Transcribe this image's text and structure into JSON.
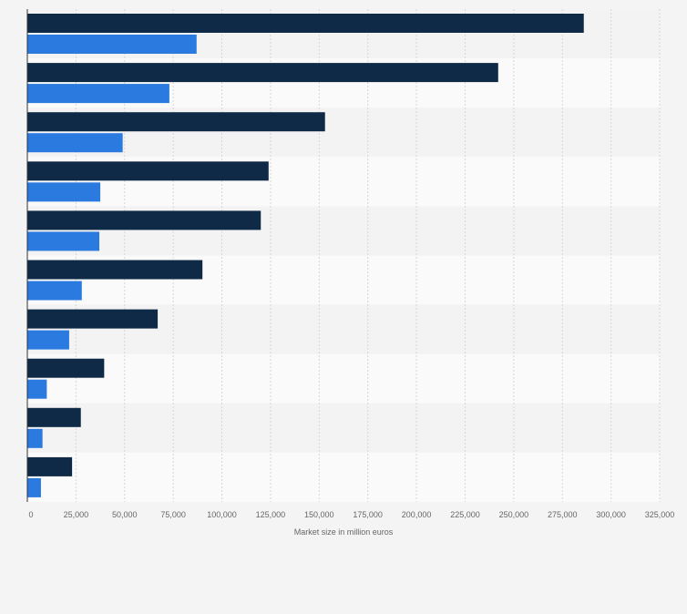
{
  "chart_data": {
    "type": "bar",
    "orientation": "horizontal",
    "title": "",
    "xlabel": "Market size in million euros",
    "ylabel": "",
    "xlim": [
      0,
      325000
    ],
    "x_ticks": [
      0,
      25000,
      50000,
      75000,
      100000,
      125000,
      150000,
      175000,
      200000,
      225000,
      250000,
      275000,
      300000,
      325000
    ],
    "x_tick_labels": [
      "0",
      "25,000",
      "50,000",
      "75,000",
      "100,000",
      "125,000",
      "150,000",
      "175,000",
      "200,000",
      "225,000",
      "250,000",
      "275,000",
      "300,000",
      "325,000"
    ],
    "grid": true,
    "legend": "none",
    "categories": [
      "",
      "",
      "",
      "",
      "",
      "",
      "",
      "",
      "",
      ""
    ],
    "series": [
      {
        "color": "#0f2a46",
        "values": [
          286000,
          242000,
          153000,
          124000,
          120000,
          90000,
          67000,
          39500,
          27500,
          23000
        ]
      },
      {
        "color": "#2b7ae0",
        "values": [
          87000,
          73000,
          49000,
          37500,
          37000,
          28000,
          21500,
          10000,
          7800,
          7000
        ]
      }
    ]
  }
}
